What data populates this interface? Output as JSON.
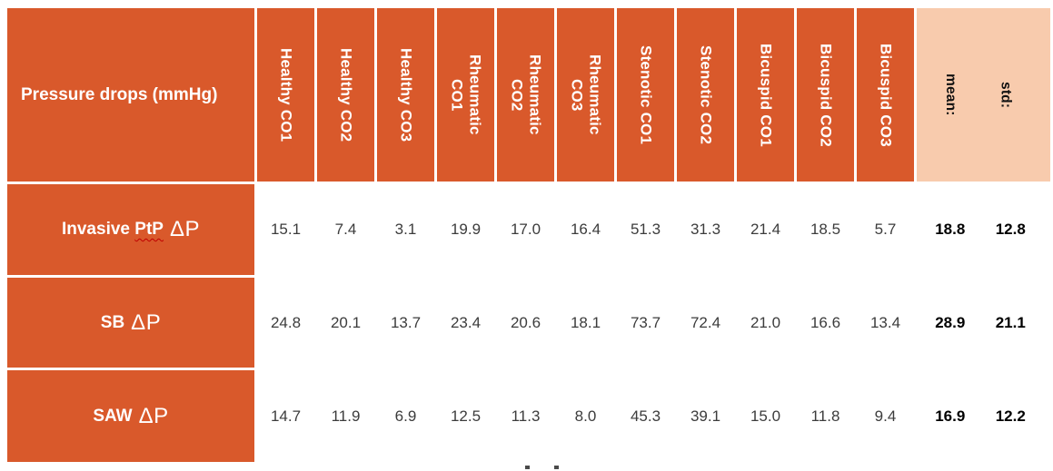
{
  "colors": {
    "table_orange": "#D9592B",
    "stat_header_bg": "#F8CBAD",
    "header_text": "#FFFFFF",
    "value_text": "#3C3C3C",
    "stat_value_text": "#000000",
    "squiggle_red": "#C00000"
  },
  "table": {
    "title": "Pressure drops (mmHg)",
    "columns": [
      "Healthy CO1",
      "Healthy CO2",
      "Healthy CO3",
      "Rheumatic\nCO1",
      "Rheumatic\nCO2",
      "Rheumatic\nCO3",
      "Stenotic CO1",
      "Stenotic CO2",
      "Bicuspid CO1",
      "Bicuspid CO2",
      "Bicuspid CO3"
    ],
    "stat_headers": [
      "mean:",
      "std:"
    ],
    "rows": [
      {
        "label": "Invasive PtP",
        "squiggle_word": "PtP",
        "delta": "ΔP",
        "values": [
          "15.1",
          "7.4",
          "3.1",
          "19.9",
          "17.0",
          "16.4",
          "51.3",
          "31.3",
          "21.4",
          "18.5",
          "5.7"
        ],
        "mean": "18.8",
        "std": "12.8"
      },
      {
        "label": "SB",
        "squiggle_word": null,
        "delta": "ΔP",
        "values": [
          "24.8",
          "20.1",
          "13.7",
          "23.4",
          "20.6",
          "18.1",
          "73.7",
          "72.4",
          "21.0",
          "16.6",
          "13.4"
        ],
        "mean": "28.9",
        "std": "21.1"
      },
      {
        "label": "SAW",
        "squiggle_word": null,
        "delta": "ΔP",
        "values": [
          "14.7",
          "11.9",
          "6.9",
          "12.5",
          "11.3",
          "8.0",
          "45.3",
          "39.1",
          "15.0",
          "11.8",
          "9.4"
        ],
        "mean": "16.9",
        "std": "12.2"
      }
    ]
  }
}
